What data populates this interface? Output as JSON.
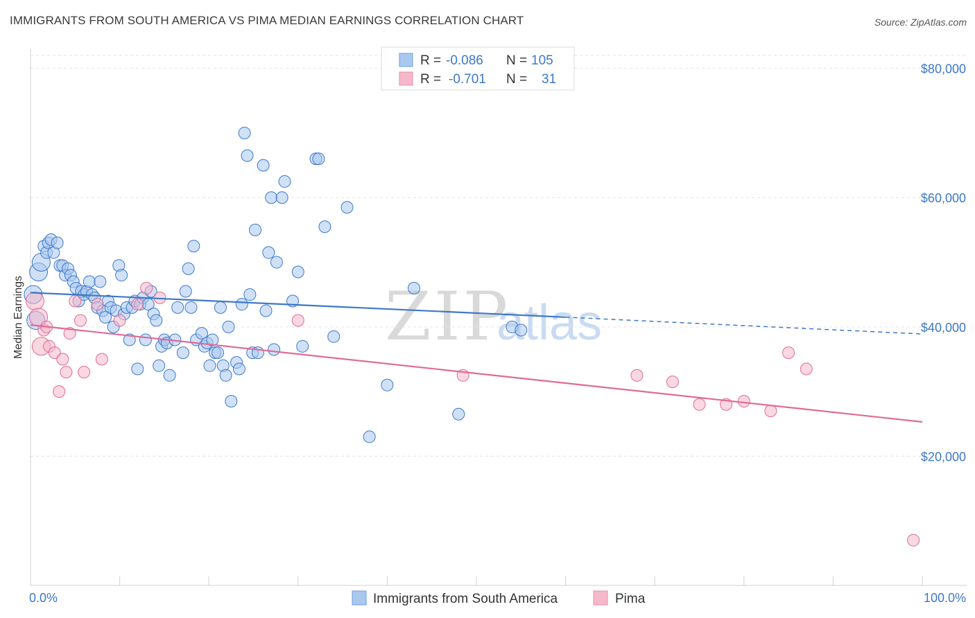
{
  "title": "IMMIGRANTS FROM SOUTH AMERICA VS PIMA MEDIAN EARNINGS CORRELATION CHART",
  "source": "Source: ZipAtlas.com",
  "watermark": {
    "part1": "ZIP",
    "part2": "atlas"
  },
  "legend": {
    "rows": [
      {
        "r_label": "R =",
        "r_value": "-0.086",
        "n_label": "N =",
        "n_value": "105",
        "color": "#a9c8f0"
      },
      {
        "r_label": "R =",
        "r_value": "-0.701",
        "n_label": "N =",
        "n_value": "31",
        "color": "#f5b8cb"
      }
    ]
  },
  "bottom_legend": [
    "Immigrants from South America",
    "Pima"
  ],
  "chart_data": {
    "type": "scatter",
    "xlabel": "",
    "ylabel": "Median Earnings",
    "xlim": [
      0,
      100
    ],
    "ylim": [
      0,
      82000
    ],
    "x_tick_labels": [
      "0.0%",
      "100.0%"
    ],
    "y_ticks": [
      20000,
      40000,
      60000,
      80000
    ],
    "y_tick_labels": [
      "$20,000",
      "$40,000",
      "$60,000",
      "$80,000"
    ],
    "grid": "horizontal dashed",
    "colors": {
      "blue": "#3d78c8",
      "blue_fill": "#a9c8f0",
      "pink": "#e06a96",
      "pink_fill": "#f5b8cb"
    },
    "series": [
      {
        "name": "Immigrants from South America",
        "trend": {
          "x": [
            0,
            60
          ],
          "y": [
            45300,
            41500
          ],
          "dashed_to": [
            100,
            38900
          ]
        },
        "points": [
          [
            0.3,
            45000
          ],
          [
            0.6,
            41000
          ],
          [
            0.9,
            48500
          ],
          [
            1.2,
            50000
          ],
          [
            1.5,
            52500
          ],
          [
            1.8,
            51500
          ],
          [
            2.0,
            53000
          ],
          [
            2.3,
            53500
          ],
          [
            2.6,
            51500
          ],
          [
            3.0,
            53000
          ],
          [
            3.3,
            49500
          ],
          [
            3.6,
            49500
          ],
          [
            3.9,
            48000
          ],
          [
            4.2,
            49000
          ],
          [
            4.5,
            48000
          ],
          [
            4.8,
            47000
          ],
          [
            5.1,
            46000
          ],
          [
            5.4,
            44000
          ],
          [
            5.7,
            45500
          ],
          [
            6.0,
            45000
          ],
          [
            6.3,
            45500
          ],
          [
            6.6,
            47000
          ],
          [
            6.9,
            45000
          ],
          [
            7.2,
            44500
          ],
          [
            7.5,
            43000
          ],
          [
            7.8,
            47000
          ],
          [
            8.1,
            42500
          ],
          [
            8.4,
            41500
          ],
          [
            8.7,
            44000
          ],
          [
            9.0,
            43000
          ],
          [
            9.3,
            40000
          ],
          [
            9.6,
            42500
          ],
          [
            9.9,
            49500
          ],
          [
            10.2,
            48000
          ],
          [
            10.5,
            42000
          ],
          [
            10.8,
            43000
          ],
          [
            11.1,
            38000
          ],
          [
            11.4,
            43000
          ],
          [
            11.7,
            44000
          ],
          [
            12.0,
            33500
          ],
          [
            12.3,
            43500
          ],
          [
            12.6,
            44500
          ],
          [
            12.9,
            38000
          ],
          [
            13.2,
            43500
          ],
          [
            13.5,
            45500
          ],
          [
            13.8,
            42000
          ],
          [
            14.1,
            41000
          ],
          [
            14.4,
            34000
          ],
          [
            14.7,
            37000
          ],
          [
            15.0,
            38000
          ],
          [
            15.3,
            37500
          ],
          [
            15.6,
            32500
          ],
          [
            16.2,
            38000
          ],
          [
            16.5,
            43000
          ],
          [
            17.1,
            36000
          ],
          [
            17.4,
            45500
          ],
          [
            17.7,
            49000
          ],
          [
            18.0,
            43000
          ],
          [
            18.3,
            52500
          ],
          [
            18.6,
            38000
          ],
          [
            19.2,
            39000
          ],
          [
            19.5,
            37000
          ],
          [
            19.8,
            37500
          ],
          [
            20.1,
            34000
          ],
          [
            20.4,
            38000
          ],
          [
            20.7,
            36000
          ],
          [
            21.0,
            36000
          ],
          [
            21.3,
            43000
          ],
          [
            21.6,
            34000
          ],
          [
            21.9,
            32500
          ],
          [
            22.2,
            40000
          ],
          [
            22.5,
            28500
          ],
          [
            23.1,
            34500
          ],
          [
            23.4,
            33500
          ],
          [
            23.7,
            43500
          ],
          [
            24.0,
            70000
          ],
          [
            24.3,
            66500
          ],
          [
            24.6,
            45000
          ],
          [
            24.9,
            36000
          ],
          [
            25.2,
            55000
          ],
          [
            25.5,
            36000
          ],
          [
            26.1,
            65000
          ],
          [
            26.4,
            42500
          ],
          [
            26.7,
            51500
          ],
          [
            27.0,
            60000
          ],
          [
            27.3,
            36500
          ],
          [
            27.6,
            50000
          ],
          [
            28.2,
            60000
          ],
          [
            28.5,
            62500
          ],
          [
            29.4,
            44000
          ],
          [
            30.0,
            48500
          ],
          [
            30.5,
            37000
          ],
          [
            32.0,
            66000
          ],
          [
            32.3,
            66000
          ],
          [
            33.0,
            55500
          ],
          [
            34.0,
            38500
          ],
          [
            35.5,
            58500
          ],
          [
            38.0,
            23000
          ],
          [
            40.0,
            31000
          ],
          [
            43.0,
            46000
          ],
          [
            48.0,
            26500
          ],
          [
            54.0,
            40000
          ],
          [
            55.0,
            39500
          ]
        ]
      },
      {
        "name": "Pima",
        "trend": {
          "x": [
            0,
            100
          ],
          "y": [
            40300,
            25300
          ]
        },
        "points": [
          [
            0.5,
            44000
          ],
          [
            0.9,
            41500
          ],
          [
            1.2,
            37000
          ],
          [
            1.5,
            39500
          ],
          [
            1.8,
            40000
          ],
          [
            2.1,
            37000
          ],
          [
            2.7,
            36000
          ],
          [
            3.2,
            30000
          ],
          [
            3.6,
            35000
          ],
          [
            4.0,
            33000
          ],
          [
            4.4,
            39000
          ],
          [
            5.0,
            44000
          ],
          [
            5.6,
            41000
          ],
          [
            6.0,
            33000
          ],
          [
            7.5,
            43500
          ],
          [
            8.0,
            35000
          ],
          [
            10.0,
            41000
          ],
          [
            12.0,
            43500
          ],
          [
            13.0,
            46000
          ],
          [
            14.5,
            44500
          ],
          [
            30.0,
            41000
          ],
          [
            48.5,
            32500
          ],
          [
            68.0,
            32500
          ],
          [
            72.0,
            31500
          ],
          [
            75.0,
            28000
          ],
          [
            78.0,
            28000
          ],
          [
            80.0,
            28500
          ],
          [
            83.0,
            27000
          ],
          [
            85.0,
            36000
          ],
          [
            87.0,
            33500
          ],
          [
            99.0,
            7000
          ]
        ]
      }
    ]
  }
}
